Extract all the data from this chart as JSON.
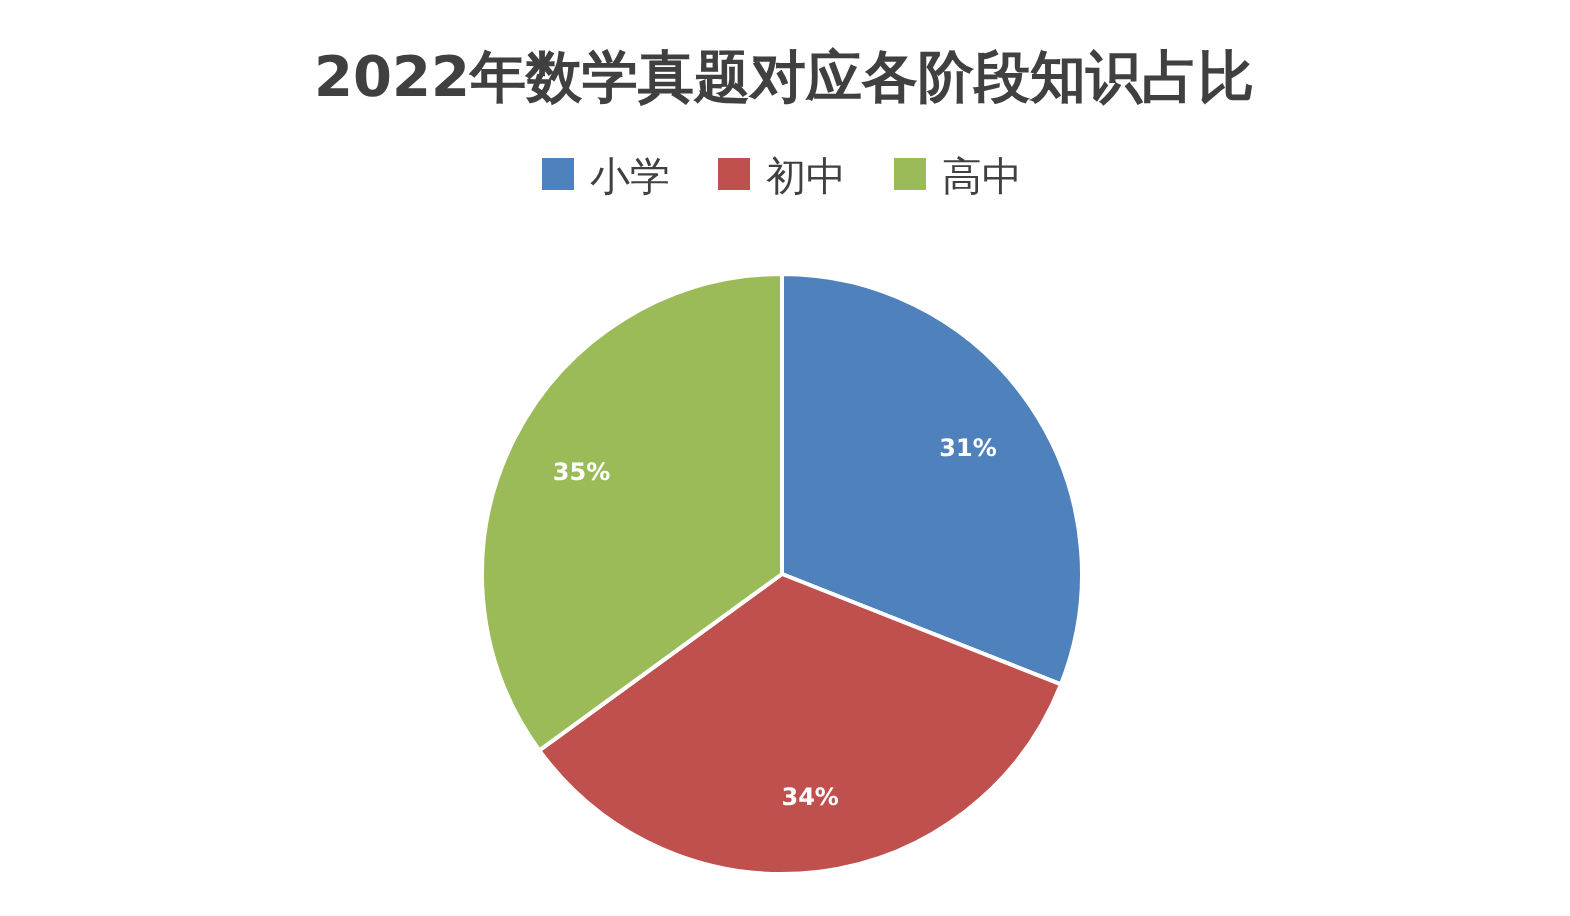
{
  "chart_data": {
    "type": "pie",
    "title": "2022年数学真题对应各阶段知识占比",
    "categories": [
      "小学",
      "初中",
      "高中"
    ],
    "values": [
      31,
      34,
      35
    ],
    "colors": [
      "#4f81bd",
      "#c0504d",
      "#9bbb59"
    ],
    "value_labels": [
      "31%",
      "34%",
      "35%"
    ],
    "legend": "top"
  }
}
